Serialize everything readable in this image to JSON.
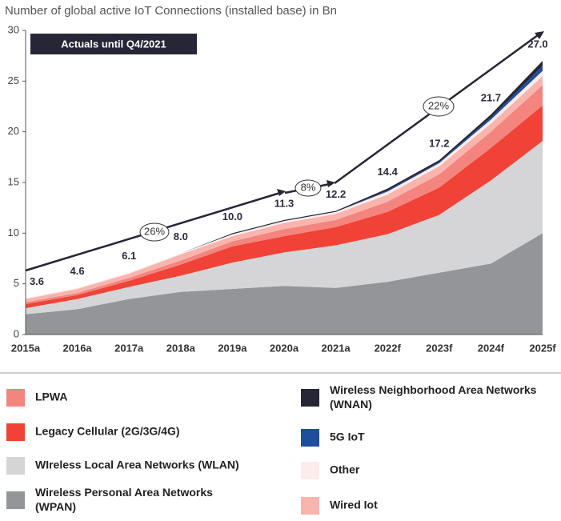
{
  "chart_data": {
    "type": "stacked_area",
    "title": "Number of global active IoT Connections (installed base) in Bn",
    "banner": "Actuals until Q4/2021",
    "categories": [
      "2015a",
      "2016a",
      "2017a",
      "2018a",
      "2019a",
      "2020a",
      "2021a",
      "2022f",
      "2023f",
      "2024f",
      "2025f"
    ],
    "series": [
      {
        "name": "Wireless Personal Area Networks (WPAN)",
        "color": "#939598",
        "values": [
          2.0,
          2.5,
          3.5,
          4.2,
          4.5,
          4.8,
          4.6,
          5.2,
          6.1,
          7.0,
          10.0
        ]
      },
      {
        "name": "WIreless Local Area Networks (WLAN)",
        "color": "#d5d5d7",
        "values": [
          0.6,
          1.0,
          1.2,
          1.6,
          2.6,
          3.3,
          4.2,
          4.7,
          5.7,
          8.2,
          9.1
        ]
      },
      {
        "name": "Legacy Cellular (2G/3G/4G)",
        "color": "#f04237",
        "values": [
          0.4,
          0.4,
          0.6,
          1.1,
          1.6,
          1.6,
          1.8,
          2.2,
          2.7,
          3.2,
          3.5
        ]
      },
      {
        "name": "LPWA",
        "color": "#f4847e",
        "values": [
          0.2,
          0.2,
          0.3,
          0.4,
          0.5,
          0.7,
          0.7,
          1.0,
          1.3,
          1.6,
          2.0
        ]
      },
      {
        "name": "Wired Iot",
        "color": "#f9b4ae",
        "values": [
          0.3,
          0.4,
          0.4,
          0.6,
          0.5,
          0.6,
          0.6,
          0.7,
          0.8,
          0.8,
          0.9
        ]
      },
      {
        "name": "Other",
        "color": "#fdeceb",
        "values": [
          0.1,
          0.1,
          0.1,
          0.1,
          0.2,
          0.2,
          0.2,
          0.3,
          0.3,
          0.4,
          0.5
        ]
      },
      {
        "name": "5G IoT",
        "color": "#1f4e9c",
        "values": [
          0,
          0,
          0,
          0,
          0,
          0,
          0,
          0.1,
          0.1,
          0.2,
          0.5
        ]
      },
      {
        "name": "Wireless Neighborhood Area Networks (WNAN)",
        "color": "#262637",
        "values": [
          0,
          0,
          0,
          0,
          0.1,
          0.1,
          0.1,
          0.2,
          0.2,
          0.3,
          0.5
        ]
      }
    ],
    "totals": {
      "values": [
        3.6,
        4.6,
        6.1,
        8.0,
        10.0,
        11.3,
        12.2,
        14.4,
        17.2,
        21.7,
        27.0
      ],
      "value_labels": [
        "3.6",
        "4.6",
        "6.1",
        "8.0",
        "10.0",
        "11.3",
        "12.2",
        "14.4",
        "17.2",
        "21.7",
        "27.0"
      ]
    },
    "annotations": [
      "26%",
      "8%",
      "22%"
    ],
    "ylim": [
      0,
      30
    ],
    "yticks": [
      0,
      5,
      10,
      15,
      20,
      25,
      30
    ]
  }
}
